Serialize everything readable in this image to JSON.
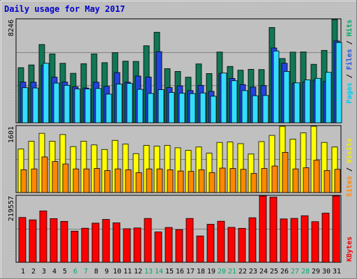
{
  "chart_data": {
    "type": "bar",
    "title": "Daily usage for May 2017",
    "categories": [
      "1",
      "2",
      "3",
      "4",
      "5",
      "6",
      "7",
      "8",
      "9",
      "10",
      "11",
      "12",
      "13",
      "14",
      "15",
      "16",
      "17",
      "18",
      "19",
      "20",
      "21",
      "22",
      "23",
      "24",
      "25",
      "26",
      "27",
      "28",
      "29",
      "30",
      "31"
    ],
    "weekend_days": [
      "6",
      "7",
      "13",
      "14",
      "20",
      "21",
      "27",
      "28"
    ],
    "panels": [
      {
        "name": "hits-files-pages",
        "ymax_label": "8246",
        "ylim": [
          0,
          8246
        ],
        "ylabels": [
          {
            "text": "Pages",
            "color": "#00ccee"
          },
          {
            "text": "Files",
            "color": "#2255dd"
          },
          {
            "text": "Hits",
            "color": "#00aa66"
          }
        ],
        "series": [
          {
            "name": "Hits",
            "color": "#117755",
            "values": [
              4400,
              4620,
              6250,
              5500,
              4750,
              3950,
              4720,
              5500,
              4800,
              5600,
              4920,
              4900,
              6150,
              7230,
              4320,
              4100,
              3640,
              4700,
              3930,
              5650,
              4500,
              4200,
              4270,
              4250,
              7610,
              5130,
              5640,
              5660,
              4670,
              5780,
              8246
            ]
          },
          {
            "name": "Files",
            "color": "#2244dd",
            "values": [
              3250,
              3240,
              4580,
              3640,
              3250,
              2870,
              2780,
              3240,
              2910,
              4010,
              3240,
              3730,
              3650,
              5680,
              2810,
              2950,
              2570,
              2990,
              2510,
              3940,
              3540,
              3050,
              2850,
              2970,
              5970,
              4750,
              3160,
              3260,
              3410,
              3300,
              6530
            ]
          },
          {
            "name": "Pages",
            "color": "#33ddff",
            "values": [
              2800,
              2780,
              4750,
              3170,
              2990,
              2700,
              2700,
              2740,
              2290,
              3090,
              3140,
              2670,
              2340,
              2640,
              2420,
              2360,
              2330,
              2380,
              2120,
              3970,
              3360,
              2570,
              2160,
              2180,
              5730,
              4100,
              3190,
              3430,
              3550,
              4030,
              6410
            ]
          }
        ]
      },
      {
        "name": "sites-visits",
        "ymax_label": "1601",
        "ylim": [
          0,
          1601
        ],
        "ylabels": [
          {
            "text": "Sites",
            "color": "#ff8800"
          },
          {
            "text": "Visits",
            "color": "#eeee00"
          }
        ],
        "series": [
          {
            "name": "Visits",
            "color": "#ffff00",
            "values": [
              1050,
              1240,
              1430,
              1240,
              1400,
              1110,
              1240,
              1150,
              1040,
              1260,
              1170,
              940,
              1140,
              1120,
              1140,
              1080,
              1020,
              1100,
              950,
              1210,
              1220,
              1180,
              930,
              1230,
              1380,
              1600,
              1290,
              1440,
              1620,
              1210,
              1100
            ]
          },
          {
            "name": "Sites",
            "color": "#ff8800",
            "values": [
              550,
              570,
              860,
              750,
              690,
              570,
              570,
              580,
              530,
              570,
              550,
              480,
              570,
              570,
              550,
              520,
              510,
              550,
              480,
              590,
              580,
              560,
              460,
              580,
              640,
              970,
              570,
              600,
              780,
              530,
              560
            ]
          }
        ]
      },
      {
        "name": "kbytes",
        "ymax_label": "219557",
        "ylim": [
          0,
          219557
        ],
        "ylabels": [
          {
            "text": "KBytes",
            "color": "#ee0000"
          }
        ],
        "series": [
          {
            "name": "KBytes",
            "color": "#ff0000",
            "values": [
              148400,
              140600,
              170200,
              144700,
              135500,
              103200,
              112800,
              129700,
              142000,
              130700,
              111100,
              113800,
              145200,
              100500,
              115400,
              108000,
              145200,
              87200,
              125900,
              136000,
              115700,
              112500,
              147600,
              219557,
              215800,
              143700,
              145400,
              154200,
              134600,
              162700,
              219557
            ]
          }
        ]
      }
    ]
  }
}
